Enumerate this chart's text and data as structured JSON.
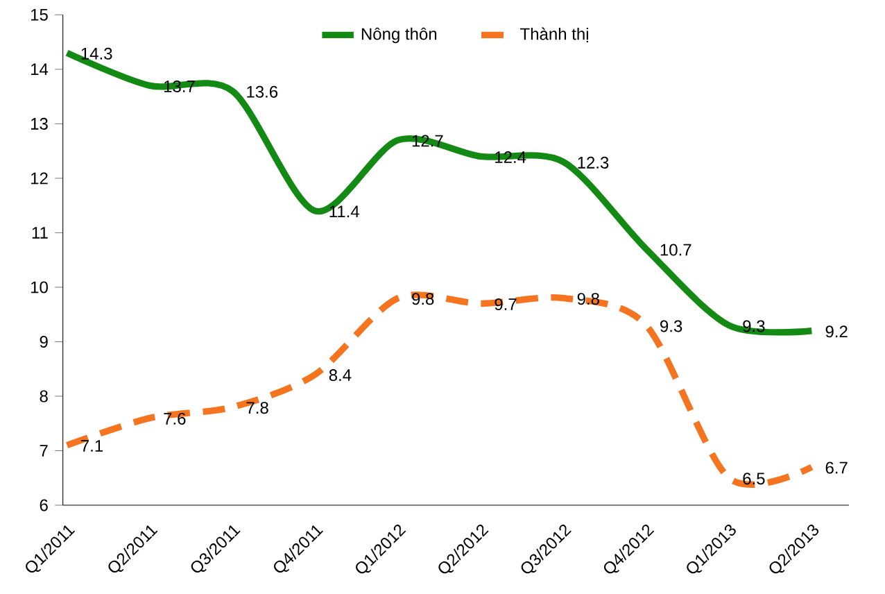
{
  "chart_data": {
    "type": "line",
    "categories": [
      "Q1/2011",
      "Q2/2011",
      "Q3/2011",
      "Q4/2011",
      "Q1/2012",
      "Q2/2012",
      "Q3/2012",
      "Q4/2012",
      "Q1/2013",
      "Q2/2013"
    ],
    "series": [
      {
        "name": "Nông thôn",
        "color": "#138a13",
        "line_style": "solid",
        "values": [
          14.3,
          13.7,
          13.6,
          11.4,
          12.7,
          12.4,
          12.3,
          10.7,
          9.3,
          9.2
        ]
      },
      {
        "name": "Thành thị",
        "color": "#f5741f",
        "line_style": "dashed",
        "values": [
          7.1,
          7.6,
          7.8,
          8.4,
          9.8,
          9.7,
          9.8,
          9.3,
          6.5,
          6.7
        ]
      }
    ],
    "ylim": [
      6,
      15
    ],
    "yticks": [
      6,
      7,
      8,
      9,
      10,
      11,
      12,
      13,
      14,
      15
    ],
    "data_labels": true,
    "legend": "top",
    "marker": "none",
    "grid": false
  }
}
